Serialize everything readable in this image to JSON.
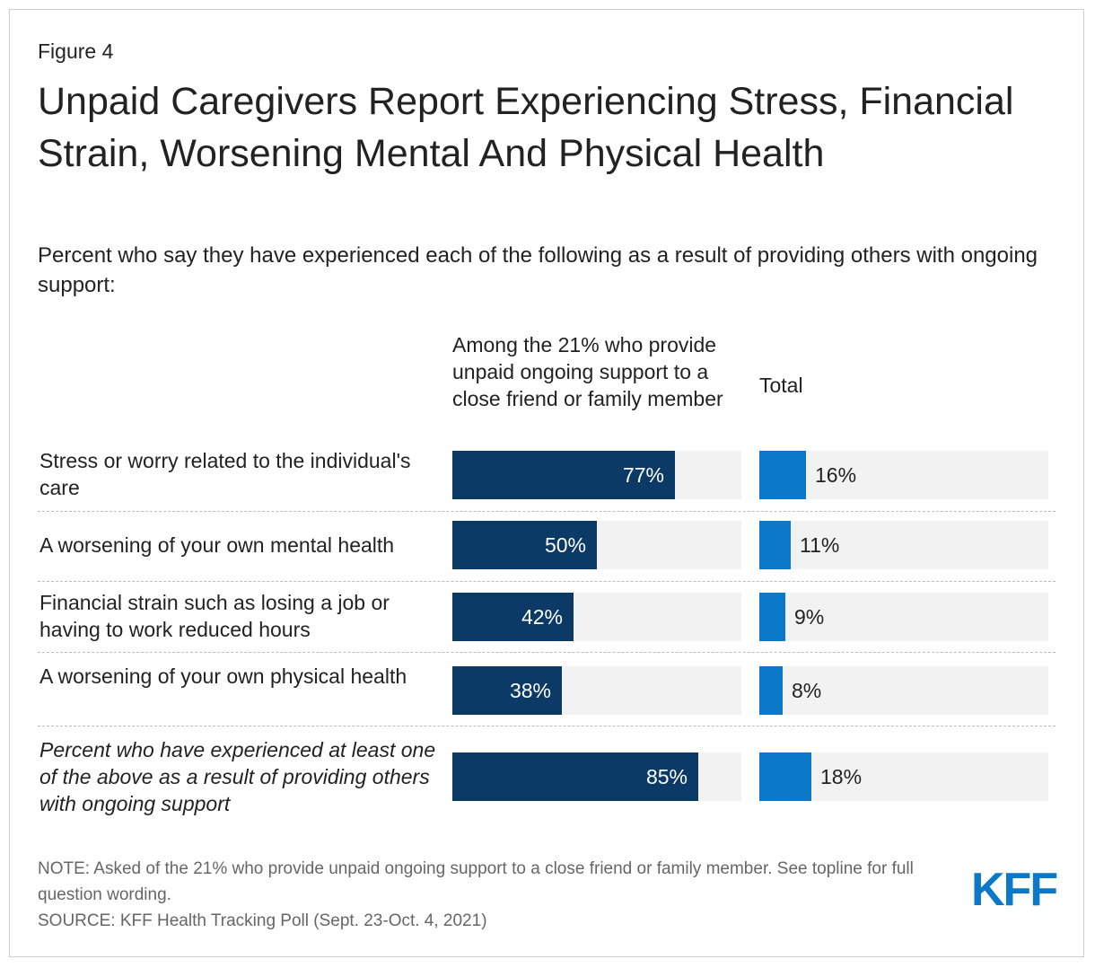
{
  "figure_label": "Figure 4",
  "title": "Unpaid Caregivers Report Experiencing Stress, Financial Strain, Worsening Mental And Physical Health",
  "subtitle": "Percent who say they have experienced each of the following as a result of providing others with ongoing support:",
  "chart_data": {
    "type": "bar",
    "orientation": "horizontal",
    "title": "Unpaid Caregivers Report Experiencing Stress, Financial Strain, Worsening Mental And Physical Health",
    "xlim": [
      0,
      100
    ],
    "unit": "%",
    "categories": [
      "Stress or worry related to the individual's care",
      "A worsening of your own mental health",
      "Financial strain such as losing a job or having to work reduced hours",
      "A worsening of your own physical health",
      "Percent who have experienced at least one of the above as a result of providing others with ongoing support"
    ],
    "series": [
      {
        "name": "Among the 21% who provide unpaid ongoing support to a close friend or family member",
        "color": "#0b3a66",
        "values": [
          77,
          50,
          42,
          38,
          85
        ]
      },
      {
        "name": "Total",
        "color": "#0b78c9",
        "values": [
          16,
          11,
          9,
          8,
          18
        ]
      }
    ]
  },
  "columns": {
    "group": "Among the 21% who provide unpaid ongoing support to a close friend or family member",
    "total": "Total"
  },
  "note": "NOTE: Asked of the 21% who provide unpaid ongoing support to a close friend or family member. See topline for full question wording.",
  "source": "SOURCE: KFF Health Tracking Poll (Sept. 23-Oct. 4, 2021)",
  "logo": "KFF"
}
